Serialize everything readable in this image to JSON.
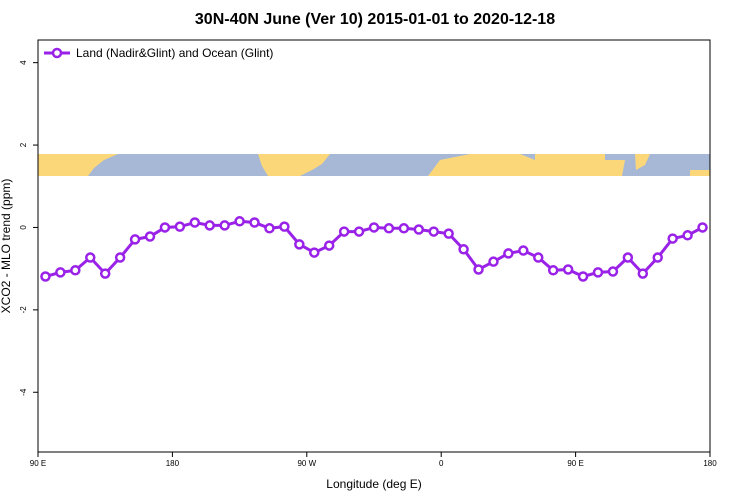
{
  "chart_data": {
    "type": "line",
    "title": "30N-40N June (Ver 10)   2015-01-01 to 2020-12-18",
    "x_label": "Longitude (deg E)",
    "y_label": "XCO2 - MLO trend (ppm)",
    "x": [
      95,
      105,
      115,
      125,
      135,
      145,
      155,
      165,
      175,
      185,
      195,
      205,
      215,
      225,
      235,
      245,
      255,
      265,
      275,
      285,
      295,
      305,
      315,
      325,
      335,
      345,
      355,
      365,
      375,
      385,
      395,
      405,
      415,
      425,
      435,
      445,
      455,
      465,
      475,
      485,
      495,
      505,
      515,
      525,
      535
    ],
    "series": [
      {
        "name": "Land (Nadir&Glint) and Ocean (Glint)",
        "color": "#9a22e8",
        "values": [
          -1.19,
          -1.09,
          -1.04,
          -0.73,
          -1.12,
          -0.73,
          -0.29,
          -0.22,
          0.0,
          0.02,
          0.12,
          0.05,
          0.05,
          0.15,
          0.12,
          -0.02,
          0.02,
          -0.41,
          -0.61,
          -0.44,
          -0.1,
          -0.1,
          0.0,
          -0.02,
          -0.02,
          -0.05,
          -0.1,
          -0.15,
          -0.53,
          -1.02,
          -0.83,
          -0.63,
          -0.56,
          -0.73,
          -1.04,
          -1.02,
          -1.19,
          -1.09,
          -1.07,
          -0.73,
          -1.12,
          -0.73,
          -0.27,
          -0.19,
          0.0
        ]
      }
    ],
    "xlim": [
      90,
      540
    ],
    "xticks": [
      {
        "value": 90,
        "label": "90 E"
      },
      {
        "value": 180,
        "label": "180"
      },
      {
        "value": 270,
        "label": "90 W"
      },
      {
        "value": 360,
        "label": "0"
      },
      {
        "value": 450,
        "label": "90 E"
      },
      {
        "value": 540,
        "label": "180"
      }
    ],
    "ylim": [
      -5.45,
      4.55
    ],
    "yticks": [
      -4,
      -2,
      0,
      2,
      4
    ],
    "legend": "top-left"
  }
}
